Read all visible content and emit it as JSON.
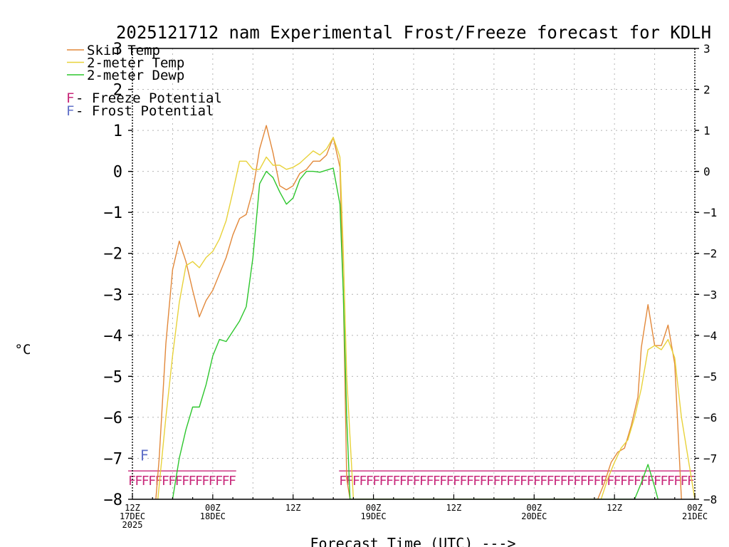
{
  "chart_data": {
    "type": "line",
    "title": "2025121712 nam Experimental Frost/Freeze forecast for KDLH",
    "xlabel": "Forecast Time (UTC) --->",
    "ylabel": "°C",
    "ylim": [
      -8,
      3
    ],
    "yticks": [
      -8,
      -7,
      -6,
      -5,
      -4,
      -3,
      -2,
      -1,
      0,
      1,
      2,
      3
    ],
    "xlim_hours": [
      0,
      84
    ],
    "grid": true,
    "x_ticks": [
      {
        "hour": 0,
        "lines": [
          "12Z",
          "17DEC",
          "2025"
        ]
      },
      {
        "hour": 12,
        "lines": [
          "00Z",
          "18DEC"
        ]
      },
      {
        "hour": 24,
        "lines": [
          "12Z"
        ]
      },
      {
        "hour": 36,
        "lines": [
          "00Z",
          "19DEC"
        ]
      },
      {
        "hour": 48,
        "lines": [
          "12Z"
        ]
      },
      {
        "hour": 60,
        "lines": [
          "00Z",
          "20DEC"
        ]
      },
      {
        "hour": 72,
        "lines": [
          "12Z"
        ]
      },
      {
        "hour": 84,
        "lines": [
          "00Z",
          "21DEC"
        ]
      }
    ],
    "series": [
      {
        "name": "Skin Temp",
        "color": "#e2883a",
        "points": [
          [
            3.5,
            -8
          ],
          [
            4,
            -7
          ],
          [
            5,
            -4.2
          ],
          [
            6,
            -2.4
          ],
          [
            7,
            -1.7
          ],
          [
            8,
            -2.2
          ],
          [
            9,
            -2.9
          ],
          [
            10,
            -3.55
          ],
          [
            11,
            -3.15
          ],
          [
            12,
            -2.9
          ],
          [
            13,
            -2.5
          ],
          [
            14,
            -2.1
          ],
          [
            15,
            -1.55
          ],
          [
            16,
            -1.15
          ],
          [
            17,
            -1.05
          ],
          [
            18,
            -0.45
          ],
          [
            19,
            0.55
          ],
          [
            20,
            1.12
          ],
          [
            21,
            0.45
          ],
          [
            22,
            -0.35
          ],
          [
            23,
            -0.45
          ],
          [
            24,
            -0.35
          ],
          [
            25,
            -0.05
          ],
          [
            26,
            0.05
          ],
          [
            27,
            0.25
          ],
          [
            28,
            0.25
          ],
          [
            29,
            0.4
          ],
          [
            30,
            0.83
          ],
          [
            31,
            0.1
          ],
          [
            31.5,
            -3
          ],
          [
            32,
            -7.5
          ],
          [
            32.5,
            -8
          ],
          [
            69.5,
            -8
          ],
          [
            70.5,
            -7.6
          ],
          [
            71.5,
            -7.1
          ],
          [
            72.5,
            -6.85
          ],
          [
            73.5,
            -6.75
          ],
          [
            74.5,
            -6.2
          ],
          [
            75.5,
            -5.5
          ],
          [
            76,
            -4.3
          ],
          [
            77,
            -3.25
          ],
          [
            78,
            -4.25
          ],
          [
            79,
            -4.25
          ],
          [
            80,
            -3.75
          ],
          [
            81,
            -4.7
          ],
          [
            82,
            -8
          ]
        ]
      },
      {
        "name": "2-meter Temp",
        "color": "#e8d23a",
        "points": [
          [
            3.8,
            -8
          ],
          [
            5,
            -6
          ],
          [
            6,
            -4.5
          ],
          [
            7,
            -3.2
          ],
          [
            8,
            -2.3
          ],
          [
            9,
            -2.2
          ],
          [
            10,
            -2.35
          ],
          [
            11,
            -2.1
          ],
          [
            12,
            -1.95
          ],
          [
            13,
            -1.65
          ],
          [
            14,
            -1.2
          ],
          [
            15,
            -0.5
          ],
          [
            16,
            0.25
          ],
          [
            17,
            0.25
          ],
          [
            18,
            0.05
          ],
          [
            19,
            0.05
          ],
          [
            20,
            0.35
          ],
          [
            21,
            0.15
          ],
          [
            22,
            0.15
          ],
          [
            23,
            0.05
          ],
          [
            24,
            0.1
          ],
          [
            25,
            0.2
          ],
          [
            26,
            0.35
          ],
          [
            27,
            0.5
          ],
          [
            28,
            0.4
          ],
          [
            29,
            0.55
          ],
          [
            30,
            0.83
          ],
          [
            31,
            0.35
          ],
          [
            31.5,
            -2
          ],
          [
            32,
            -5
          ],
          [
            33,
            -8
          ],
          [
            70,
            -8
          ],
          [
            71,
            -7.5
          ],
          [
            72,
            -7.1
          ],
          [
            73,
            -6.75
          ],
          [
            74,
            -6.55
          ],
          [
            75,
            -6
          ],
          [
            76,
            -5.3
          ],
          [
            77,
            -4.35
          ],
          [
            78,
            -4.25
          ],
          [
            79,
            -4.35
          ],
          [
            80,
            -4.1
          ],
          [
            81,
            -4.55
          ],
          [
            82,
            -6
          ],
          [
            83,
            -7
          ],
          [
            84,
            -8
          ]
        ]
      },
      {
        "name": "2-meter Dewp",
        "color": "#2dc62d",
        "points": [
          [
            6,
            -8
          ],
          [
            7,
            -7
          ],
          [
            8,
            -6.3
          ],
          [
            9,
            -5.75
          ],
          [
            10,
            -5.75
          ],
          [
            11,
            -5.2
          ],
          [
            12,
            -4.5
          ],
          [
            13,
            -4.1
          ],
          [
            14,
            -4.15
          ],
          [
            15,
            -3.9
          ],
          [
            16,
            -3.65
          ],
          [
            17,
            -3.3
          ],
          [
            18,
            -2.1
          ],
          [
            19,
            -0.3
          ],
          [
            20,
            0
          ],
          [
            21,
            -0.15
          ],
          [
            22,
            -0.5
          ],
          [
            23,
            -0.8
          ],
          [
            24,
            -0.65
          ],
          [
            25,
            -0.2
          ],
          [
            26,
            0
          ],
          [
            27,
            0
          ],
          [
            28,
            -0.02
          ],
          [
            29,
            0.03
          ],
          [
            30,
            0.08
          ],
          [
            31,
            -0.8
          ],
          [
            31.5,
            -3
          ],
          [
            32,
            -6
          ],
          [
            32.5,
            -8
          ],
          [
            75,
            -8
          ],
          [
            76,
            -7.6
          ],
          [
            77,
            -7.15
          ],
          [
            78,
            -7.7
          ],
          [
            78.5,
            -8
          ]
        ]
      }
    ],
    "potential_legend": [
      {
        "letter": "F",
        "label": " - Freeze Potential",
        "color": "#c8287a"
      },
      {
        "letter": "F",
        "label": " - Frost Potential",
        "color": "#6070c8"
      }
    ],
    "freeze_markers": [
      {
        "start_hour": 0,
        "end_hour": 15.5
      },
      {
        "start_hour": 31.5,
        "end_hour": 84
      }
    ],
    "frost_marker_hour": 2,
    "marker_letter": "F"
  }
}
